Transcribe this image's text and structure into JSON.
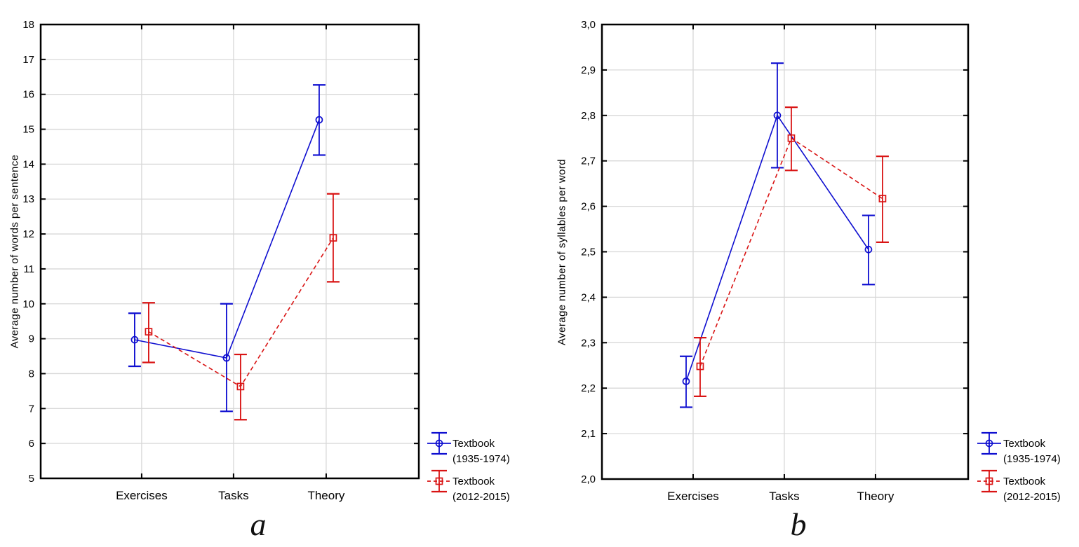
{
  "colors": {
    "series1": "#0f0fd0",
    "series2": "#d91414",
    "grid": "#d8d8d8",
    "axis": "#000000",
    "text": "#000000",
    "background": "#ffffff"
  },
  "chart_data": [
    {
      "id": "a",
      "type": "line",
      "caption": "a",
      "ylabel": "Average number of words per sentence",
      "categories": [
        "Exercises",
        "Tasks",
        "Theory"
      ],
      "ylim": [
        5,
        18
      ],
      "ytick_step": 1,
      "decimal_comma": false,
      "grid": true,
      "legend_position": "right-bottom",
      "series": [
        {
          "name": "Textbook (1935-1974)",
          "legend_lines": [
            "Textbook",
            "(1935-1974)"
          ],
          "color": "#0f0fd0",
          "line_style": "solid",
          "marker": "circle",
          "values": [
            8.97,
            8.45,
            15.27
          ],
          "err_low": [
            8.21,
            6.92,
            14.26
          ],
          "err_high": [
            9.73,
            10.0,
            16.27
          ]
        },
        {
          "name": "Textbook (2012-2015)",
          "legend_lines": [
            "Textbook",
            "(2012-2015)"
          ],
          "color": "#d91414",
          "line_style": "dashed",
          "marker": "square",
          "values": [
            9.2,
            7.63,
            11.89
          ],
          "err_low": [
            8.32,
            6.68,
            10.63
          ],
          "err_high": [
            10.03,
            8.55,
            13.15
          ]
        }
      ]
    },
    {
      "id": "b",
      "type": "line",
      "caption": "b",
      "ylabel": "Average number of syllables per word",
      "categories": [
        "Exercises",
        "Tasks",
        "Theory"
      ],
      "ylim": [
        2.0,
        3.0
      ],
      "ytick_step": 0.1,
      "decimal_comma": true,
      "grid": true,
      "legend_position": "right-bottom",
      "series": [
        {
          "name": "Textbook (1935-1974)",
          "legend_lines": [
            "Textbook",
            "(1935-1974)"
          ],
          "color": "#0f0fd0",
          "line_style": "solid",
          "marker": "circle",
          "values": [
            2.215,
            2.8,
            2.505
          ],
          "err_low": [
            2.158,
            2.685,
            2.428
          ],
          "err_high": [
            2.27,
            2.915,
            2.58
          ]
        },
        {
          "name": "Textbook (2012-2015)",
          "legend_lines": [
            "Textbook",
            "(2012-2015)"
          ],
          "color": "#d91414",
          "line_style": "dashed",
          "marker": "square",
          "values": [
            2.248,
            2.75,
            2.617
          ],
          "err_low": [
            2.182,
            2.679,
            2.521
          ],
          "err_high": [
            2.311,
            2.818,
            2.71
          ]
        }
      ]
    }
  ]
}
